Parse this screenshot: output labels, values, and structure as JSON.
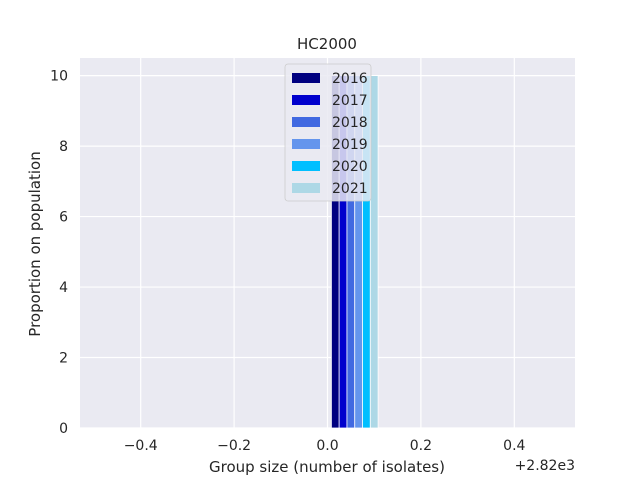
{
  "chart_data": {
    "type": "bar",
    "title": "HC2000",
    "xlabel": "Group size (number of isolates)",
    "ylabel": "Proportion on population",
    "x_offset_text": "+2.82e3",
    "xlim": [
      -0.53,
      0.53
    ],
    "ylim": [
      0,
      10.5
    ],
    "xticks": [
      -0.4,
      -0.2,
      0.0,
      0.2,
      0.4
    ],
    "xtick_labels": [
      "−0.4",
      "−0.2",
      "0.0",
      "0.2",
      "0.4"
    ],
    "yticks": [
      0,
      2,
      4,
      6,
      8,
      10
    ],
    "ytick_labels": [
      "0",
      "2",
      "4",
      "6",
      "8",
      "10"
    ],
    "grid": true,
    "legend_position": "upper-center",
    "series": [
      {
        "name": "2016",
        "color": "#000080",
        "x": 0.0167,
        "width": 0.0167,
        "value": 10
      },
      {
        "name": "2017",
        "color": "#0000CD",
        "x": 0.0333,
        "width": 0.0167,
        "value": 10
      },
      {
        "name": "2018",
        "color": "#4169E1",
        "x": 0.05,
        "width": 0.0167,
        "value": 10
      },
      {
        "name": "2019",
        "color": "#6495ED",
        "x": 0.0667,
        "width": 0.0167,
        "value": 10
      },
      {
        "name": "2020",
        "color": "#00BFFF",
        "x": 0.0833,
        "width": 0.0167,
        "value": 10
      },
      {
        "name": "2021",
        "color": "#ADD8E6",
        "x": 0.1,
        "width": 0.0167,
        "value": 10
      }
    ],
    "colors": {
      "plot_background": "#EAEAF2",
      "grid": "#FFFFFF",
      "text": "#262626"
    }
  }
}
